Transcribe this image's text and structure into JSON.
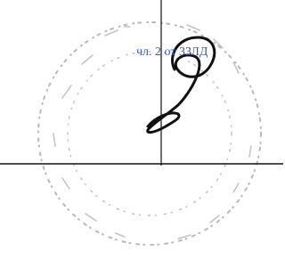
{
  "annotation": "чл. 2 от ЗЗЛД"
}
